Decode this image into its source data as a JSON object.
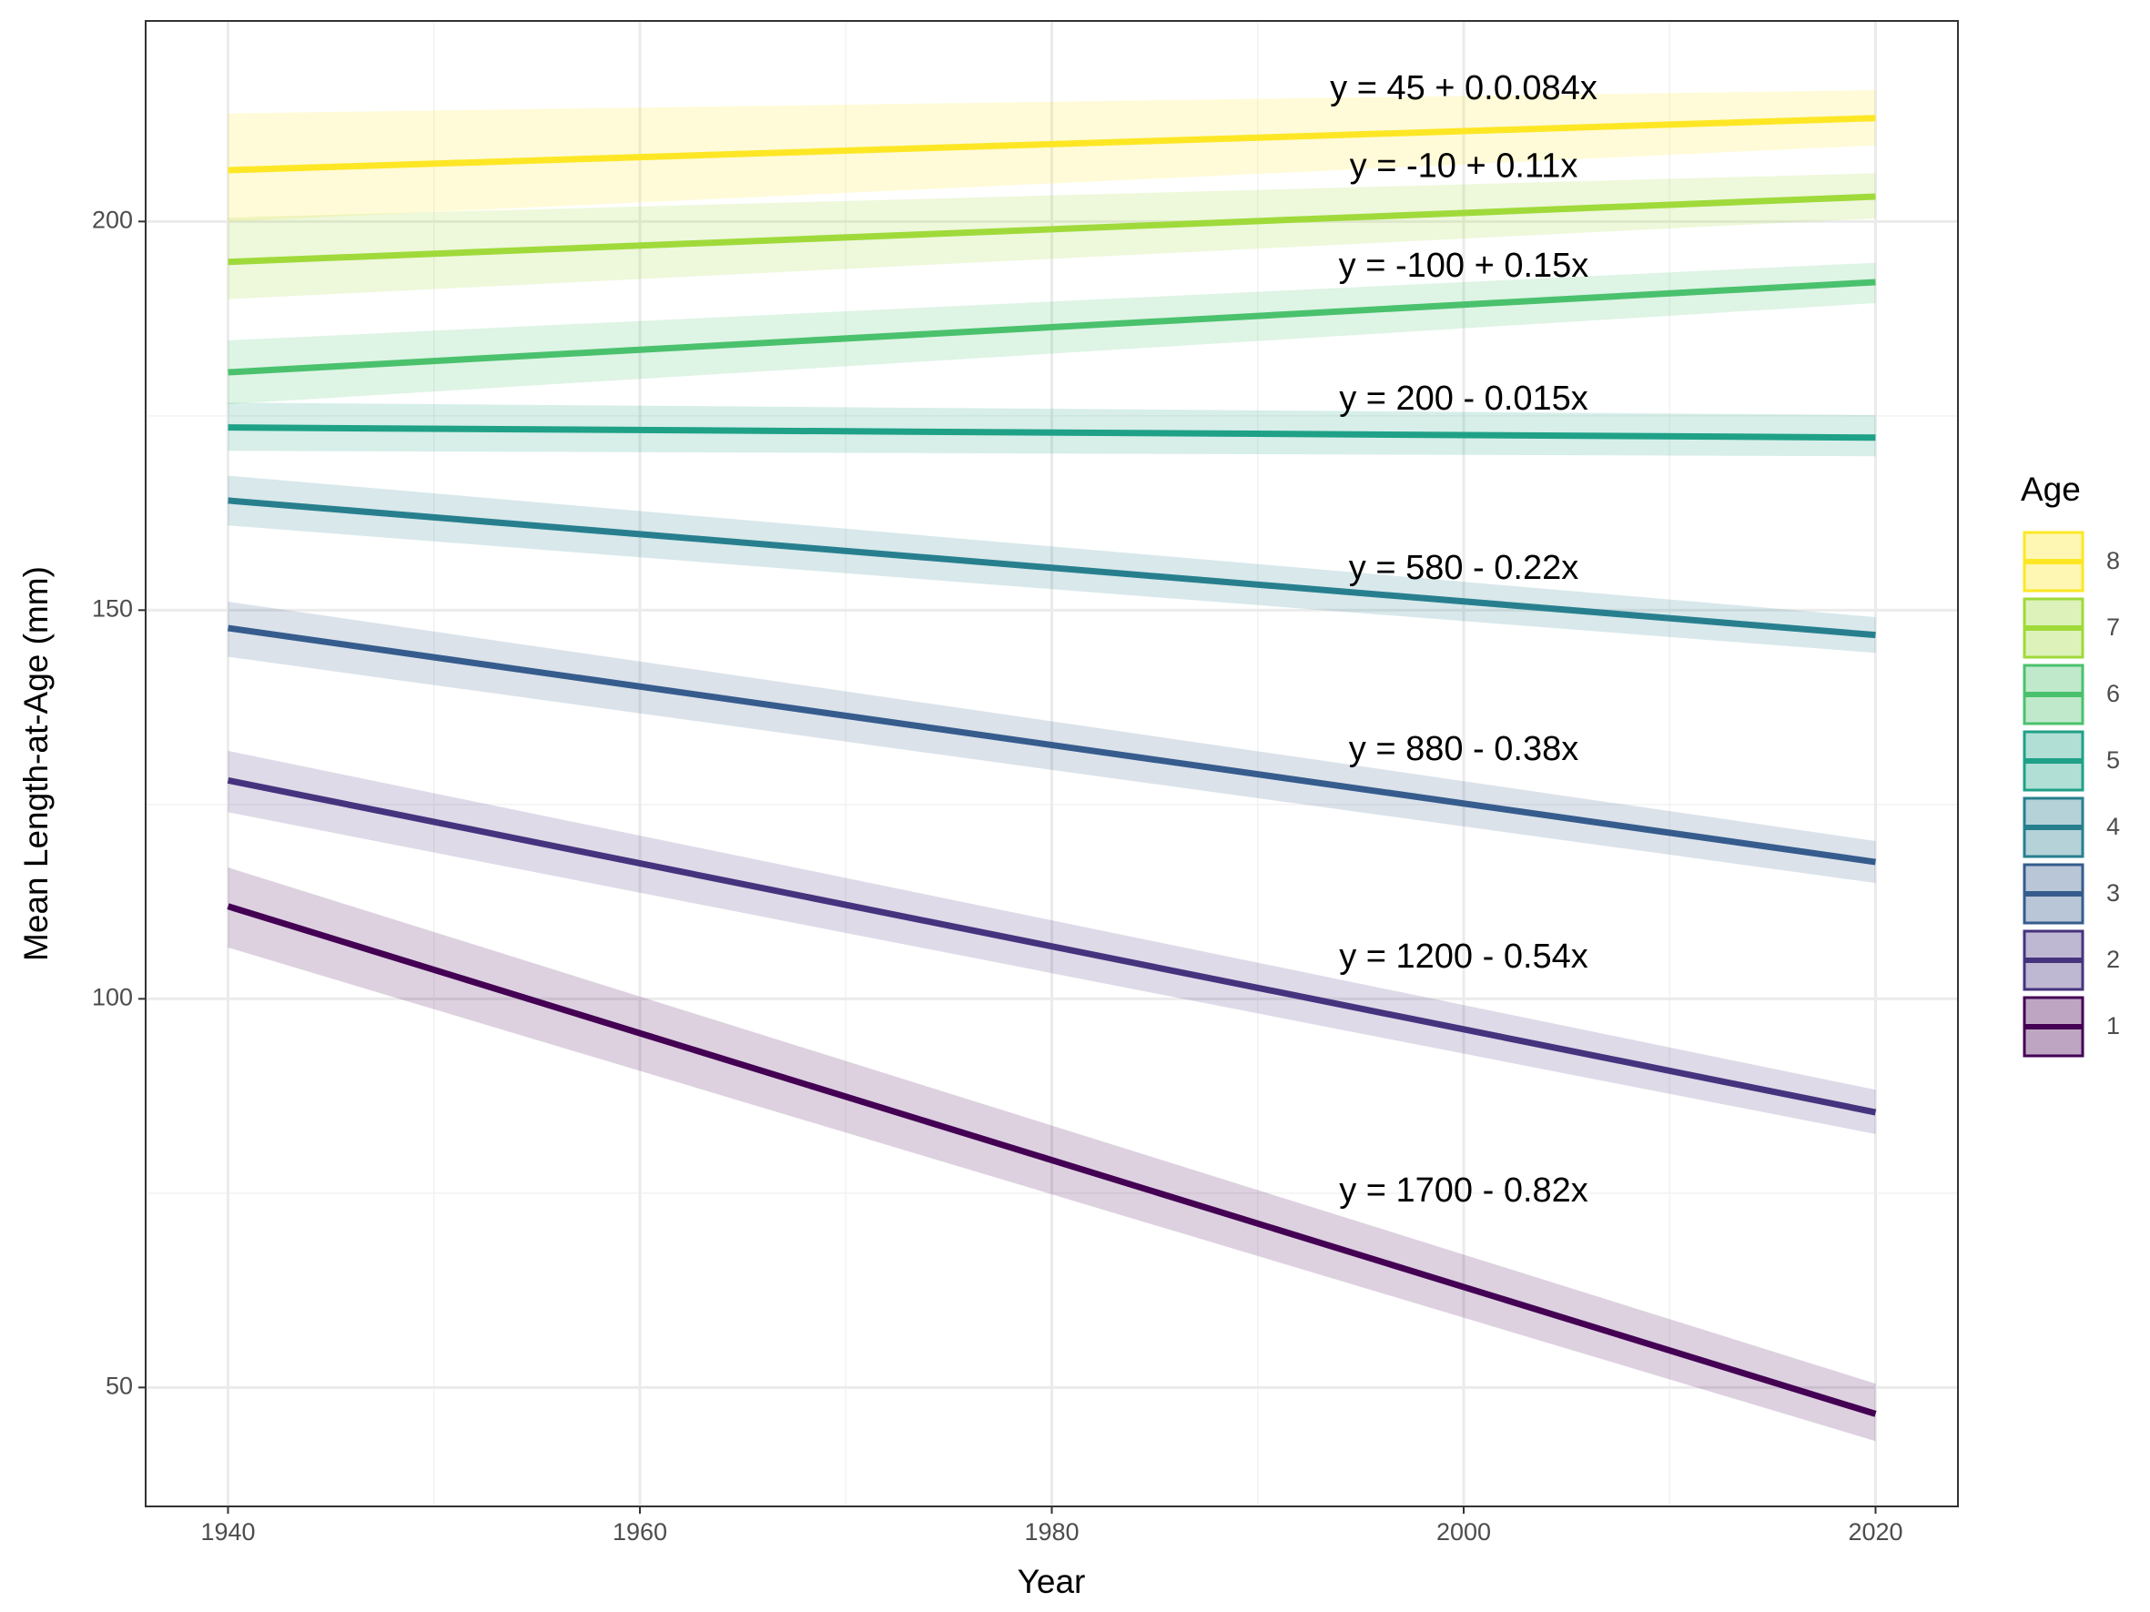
{
  "chart_data": {
    "type": "line",
    "x_label": "Year",
    "y_label": "Mean Length-at-Age (mm)",
    "xlim": [
      1936,
      2024
    ],
    "ylim": [
      34.7,
      225.8
    ],
    "xticks": [
      1940,
      1960,
      1980,
      2000,
      2020
    ],
    "yticks": [
      50,
      100,
      150,
      200
    ],
    "grid": true,
    "legend_title": "Age",
    "legend_position": "right",
    "series": [
      {
        "name": "8",
        "color": "#FDE725",
        "x": [
          1940,
          2020
        ],
        "values": [
          206.6,
          213.3
        ],
        "lower": [
          200,
          209.8
        ],
        "upper": [
          213.9,
          216.9
        ]
      },
      {
        "name": "7",
        "color": "#9FDA3A",
        "x": [
          1940,
          2020
        ],
        "values": [
          194.8,
          203.2
        ],
        "lower": [
          190,
          200.4
        ],
        "upper": [
          200.5,
          206.2
        ]
      },
      {
        "name": "6",
        "color": "#4AC16D",
        "x": [
          1940,
          2020
        ],
        "values": [
          180.6,
          192.2
        ],
        "lower": [
          176.5,
          189.5
        ],
        "upper": [
          184.7,
          194.7
        ]
      },
      {
        "name": "5",
        "color": "#1FA187",
        "x": [
          1940,
          2020
        ],
        "values": [
          173.5,
          172.2
        ],
        "lower": [
          170.5,
          169.8
        ],
        "upper": [
          176.7,
          175.1
        ]
      },
      {
        "name": "4",
        "color": "#277F8E",
        "x": [
          1940,
          2020
        ],
        "values": [
          164.1,
          146.8
        ],
        "lower": [
          160.9,
          144.5
        ],
        "upper": [
          167.3,
          149.1
        ]
      },
      {
        "name": "3",
        "color": "#365C8D",
        "x": [
          1940,
          2020
        ],
        "values": [
          147.7,
          117.6
        ],
        "lower": [
          144,
          114.9
        ],
        "upper": [
          151.1,
          120.3
        ]
      },
      {
        "name": "2",
        "color": "#46337E",
        "x": [
          1940,
          2020
        ],
        "values": [
          128.1,
          85.4
        ],
        "lower": [
          124,
          82.6
        ],
        "upper": [
          131.9,
          88.3
        ]
      },
      {
        "name": "1",
        "color": "#440154",
        "x": [
          1940,
          2020
        ],
        "values": [
          111.9,
          46.6
        ],
        "lower": [
          106.6,
          43.1
        ],
        "upper": [
          116.9,
          50.5
        ]
      }
    ],
    "annotations": [
      {
        "text": "y = 45 + 0.0.084x",
        "x": 2000,
        "y": 216.9
      },
      {
        "text": "y = -10 + 0.11x",
        "x": 2000,
        "y": 206.9
      },
      {
        "text": "y = -100 + 0.15x",
        "x": 2000,
        "y": 194.1
      },
      {
        "text": "y = 200 - 0.015x",
        "x": 2000,
        "y": 177
      },
      {
        "text": "y = 580 - 0.22x",
        "x": 2000,
        "y": 155.2
      },
      {
        "text": "y = 880 - 0.38x",
        "x": 2000,
        "y": 131.9
      },
      {
        "text": "y = 1200 - 0.54x",
        "x": 2000,
        "y": 105.2
      },
      {
        "text": "y = 1700 - 0.82x",
        "x": 2000,
        "y": 75.1
      }
    ]
  }
}
